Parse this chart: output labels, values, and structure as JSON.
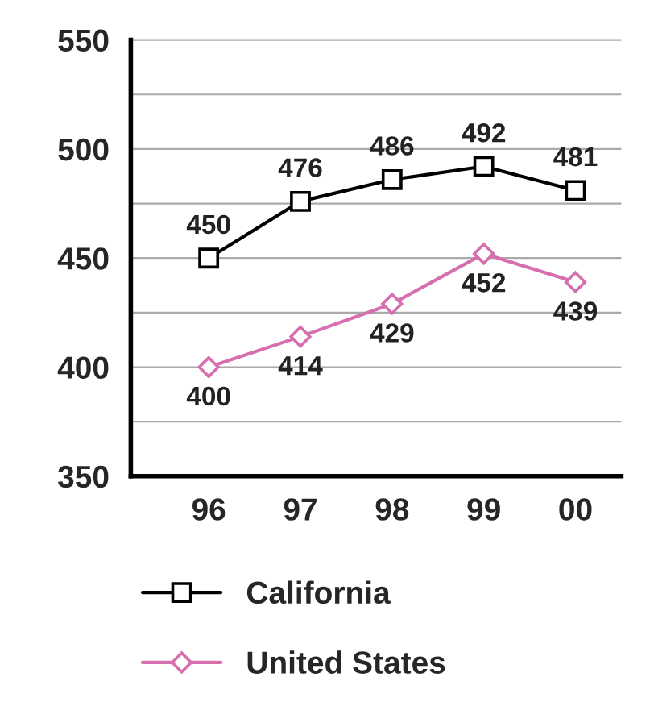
{
  "chart_data": {
    "type": "line",
    "categories": [
      "96",
      "97",
      "98",
      "99",
      "00"
    ],
    "series": [
      {
        "name": "California",
        "color": "#000000",
        "marker": "square",
        "values": [
          450,
          476,
          486,
          492,
          481
        ]
      },
      {
        "name": "United States",
        "color": "#d66fae",
        "marker": "diamond",
        "values": [
          400,
          414,
          429,
          452,
          439
        ]
      }
    ],
    "ylim": [
      350,
      550
    ],
    "yticks": [
      350,
      {
        "value": 375,
        "label": null
      },
      400,
      {
        "value": 425,
        "label": null
      },
      450,
      {
        "value": 475,
        "label": null
      },
      500,
      {
        "value": 525,
        "label": null
      },
      550
    ],
    "grid": "y",
    "data_labels": true,
    "legend": "bottom"
  }
}
